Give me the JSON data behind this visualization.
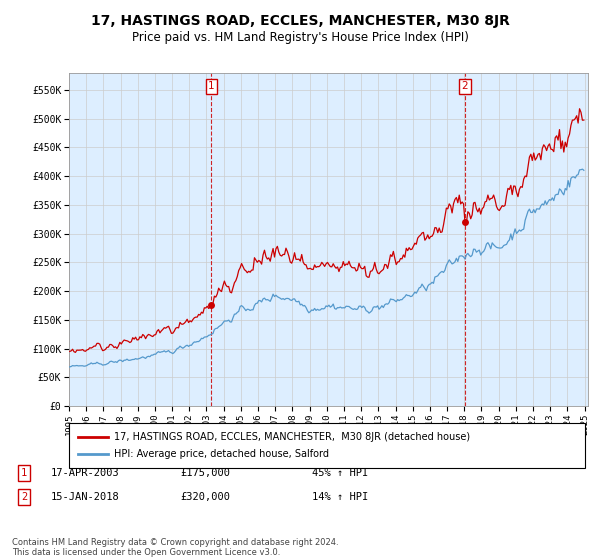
{
  "title": "17, HASTINGS ROAD, ECCLES, MANCHESTER, M30 8JR",
  "subtitle": "Price paid vs. HM Land Registry's House Price Index (HPI)",
  "title_fontsize": 10,
  "subtitle_fontsize": 8.5,
  "ylim": [
    0,
    580000
  ],
  "yticks": [
    0,
    50000,
    100000,
    150000,
    200000,
    250000,
    300000,
    350000,
    400000,
    450000,
    500000,
    550000
  ],
  "ytick_labels": [
    "£0",
    "£50K",
    "£100K",
    "£150K",
    "£200K",
    "£250K",
    "£300K",
    "£350K",
    "£400K",
    "£450K",
    "£500K",
    "£550K"
  ],
  "sale1_x": 2003.29,
  "sale1_price": 175000,
  "sale2_x": 2018.04,
  "sale2_price": 320000,
  "property_color": "#cc0000",
  "hpi_color": "#5599cc",
  "fill_color": "#ddeeff",
  "grid_color": "#cccccc",
  "background_color": "#ffffff",
  "legend_property_label": "17, HASTINGS ROAD, ECCLES, MANCHESTER,  M30 8JR (detached house)",
  "legend_hpi_label": "HPI: Average price, detached house, Salford",
  "annotation1_num": "1",
  "annotation1_date": "17-APR-2003",
  "annotation1_price": "£175,000",
  "annotation1_hpi": "45% ↑ HPI",
  "annotation2_num": "2",
  "annotation2_date": "15-JAN-2018",
  "annotation2_price": "£320,000",
  "annotation2_hpi": "14% ↑ HPI",
  "footer": "Contains HM Land Registry data © Crown copyright and database right 2024.\nThis data is licensed under the Open Government Licence v3.0."
}
